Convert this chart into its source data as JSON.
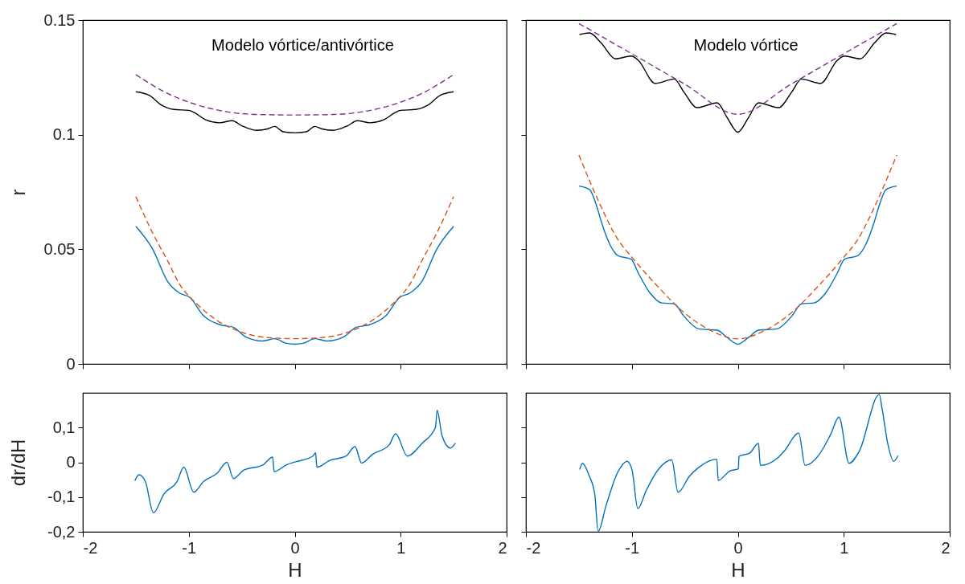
{
  "chart_data": [
    {
      "type": "line",
      "title": "Modelo vórtice/antivórtice",
      "ylabel": "r",
      "xlim": [
        -2,
        2
      ],
      "xticks": [
        -2,
        -1,
        0,
        1,
        2
      ],
      "ylim": [
        0,
        0.15
      ],
      "yticks": [
        0,
        0.05,
        0.1,
        0.15
      ],
      "tick_labels": "y",
      "series": [
        {
          "color": "#000000",
          "line_style": "solid",
          "x": [
            -1.5,
            -1.37,
            -1.26,
            -1.14,
            -1.0,
            -0.95,
            -0.84,
            -0.71,
            -0.59,
            -0.5,
            -0.36,
            -0.25,
            -0.19,
            -0.11,
            0,
            0.11,
            0.19,
            0.25,
            0.36,
            0.5,
            0.59,
            0.71,
            0.84,
            0.95,
            1.0,
            1.14,
            1.26,
            1.37,
            1.5
          ],
          "values": [
            0.1187,
            0.1171,
            0.113,
            0.111,
            0.1106,
            0.1097,
            0.1065,
            0.1052,
            0.1061,
            0.1039,
            0.1019,
            0.1026,
            0.1036,
            0.1013,
            0.1008,
            0.1013,
            0.1036,
            0.1026,
            0.1019,
            0.1039,
            0.1061,
            0.1052,
            0.1065,
            0.1097,
            0.1106,
            0.111,
            0.113,
            0.1171,
            0.1187
          ]
        },
        {
          "color": "#7e2f8e",
          "line_style": "dashed",
          "x": [
            -1.5,
            -1.2,
            -0.92,
            -0.64,
            -0.36,
            0,
            0.36,
            0.64,
            0.92,
            1.2,
            1.5
          ],
          "values": [
            0.1262,
            0.118,
            0.113,
            0.11,
            0.1088,
            0.1086,
            0.1088,
            0.11,
            0.113,
            0.118,
            0.1262
          ]
        },
        {
          "color": "#0072bd",
          "line_style": "solid",
          "x": [
            -1.5,
            -1.34,
            -1.2,
            -1.09,
            -0.99,
            -0.86,
            -0.7,
            -0.58,
            -0.47,
            -0.3,
            -0.19,
            -0.08,
            0,
            0.08,
            0.19,
            0.3,
            0.47,
            0.58,
            0.7,
            0.86,
            0.99,
            1.09,
            1.2,
            1.34,
            1.5
          ],
          "values": [
            0.06,
            0.05,
            0.036,
            0.031,
            0.029,
            0.021,
            0.017,
            0.016,
            0.012,
            0.01,
            0.011,
            0.009,
            0.0086,
            0.009,
            0.011,
            0.01,
            0.012,
            0.016,
            0.017,
            0.021,
            0.029,
            0.031,
            0.036,
            0.05,
            0.06
          ]
        },
        {
          "color": "#d95319",
          "line_style": "dashed",
          "x": [
            -1.5,
            -1.34,
            -1.2,
            -1.09,
            -0.92,
            -0.75,
            -0.53,
            -0.3,
            0,
            0.3,
            0.53,
            0.75,
            0.92,
            1.09,
            1.2,
            1.34,
            1.5
          ],
          "values": [
            0.073,
            0.057,
            0.045,
            0.035,
            0.026,
            0.0195,
            0.0143,
            0.0117,
            0.011,
            0.0117,
            0.0143,
            0.0195,
            0.026,
            0.035,
            0.045,
            0.057,
            0.073
          ]
        }
      ]
    },
    {
      "type": "line",
      "title": "Modelo vórtice",
      "xlim": [
        -2,
        2
      ],
      "xticks": [
        -2,
        -1,
        0,
        1,
        2
      ],
      "ylim": [
        0,
        0.15
      ],
      "yticks": [
        0,
        0.05,
        0.1,
        0.15
      ],
      "tick_labels": false,
      "series": [
        {
          "color": "#000000",
          "line_style": "solid",
          "x": [
            -1.494,
            -1.4,
            -1.29,
            -1.155,
            -1.007,
            -0.94,
            -0.78,
            -0.6,
            -0.51,
            -0.384,
            -0.195,
            -0.1,
            0,
            0.1,
            0.195,
            0.384,
            0.51,
            0.6,
            0.78,
            0.94,
            1.007,
            1.155,
            1.29,
            1.4,
            1.494
          ],
          "values": [
            0.1437,
            0.1444,
            0.14,
            0.1331,
            0.1343,
            0.1325,
            0.1224,
            0.1243,
            0.1187,
            0.1118,
            0.1139,
            0.1074,
            0.1011,
            0.1074,
            0.1139,
            0.1118,
            0.1187,
            0.1243,
            0.1224,
            0.1325,
            0.1343,
            0.1331,
            0.14,
            0.1444,
            0.1437
          ]
        },
        {
          "color": "#7e2f8e",
          "line_style": "dashed",
          "x": [
            -1.5,
            -1,
            -0.5,
            0,
            0.5,
            1,
            1.5
          ],
          "values": [
            0.1485,
            0.1353,
            0.122,
            0.1089,
            0.122,
            0.1353,
            0.1485
          ]
        },
        {
          "color": "#0072bd",
          "line_style": "solid",
          "x": [
            -1.5,
            -1.4,
            -1.33,
            -1.29,
            -1.21,
            -1.13,
            -1.007,
            -0.94,
            -0.83,
            -0.72,
            -0.6,
            -0.51,
            -0.37,
            -0.195,
            -0.1,
            0,
            0.1,
            0.195,
            0.37,
            0.51,
            0.6,
            0.72,
            0.83,
            0.94,
            1.007,
            1.13,
            1.21,
            1.29,
            1.33,
            1.4,
            1.5
          ],
          "values": [
            0.0776,
            0.0761,
            0.0685,
            0.0623,
            0.0523,
            0.0472,
            0.0457,
            0.0397,
            0.031,
            0.0266,
            0.0262,
            0.0209,
            0.0153,
            0.0147,
            0.0115,
            0.0086,
            0.0115,
            0.0147,
            0.0153,
            0.0209,
            0.0262,
            0.0266,
            0.031,
            0.0397,
            0.0457,
            0.0472,
            0.0523,
            0.0623,
            0.0685,
            0.0761,
            0.0776
          ]
        },
        {
          "color": "#d95319",
          "line_style": "dashed",
          "x": [
            -1.5,
            -1.29,
            -1.155,
            -0.966,
            -0.75,
            -0.533,
            -0.26,
            0,
            0.26,
            0.533,
            0.75,
            0.966,
            1.155,
            1.29,
            1.5
          ],
          "values": [
            0.0911,
            0.0685,
            0.056,
            0.0447,
            0.0335,
            0.0234,
            0.0147,
            0.0109,
            0.0147,
            0.0234,
            0.0335,
            0.0447,
            0.056,
            0.0685,
            0.0911
          ]
        }
      ]
    },
    {
      "type": "line",
      "xlabel": "H",
      "ylabel": "dr/dH",
      "xlim": [
        -2,
        2
      ],
      "xticks": [
        -2,
        -1,
        0,
        1,
        2
      ],
      "ylim": [
        -0.2,
        0.2
      ],
      "yticks": [
        {
          "value": -0.2,
          "label": "-0,2"
        },
        {
          "value": -0.1,
          "label": "-0,1"
        },
        0,
        {
          "value": 0.1,
          "label": "0,1"
        }
      ],
      "series": [
        {
          "color": "#0072bd",
          "line_style": "solid",
          "x": [
            -1.509,
            -1.47,
            -1.41,
            -1.334,
            -1.234,
            -1.11,
            -1.047,
            -0.953,
            -0.86,
            -0.734,
            -0.64,
            -0.578,
            -0.484,
            -0.297,
            -0.209,
            -0.194,
            -0.078,
            0.016,
            0.172,
            0.197,
            0.209,
            0.328,
            0.484,
            0.569,
            0.631,
            0.734,
            0.891,
            0.953,
            1.063,
            1.203,
            1.328,
            1.344,
            1.39,
            1.47,
            1.516
          ],
          "values": [
            -0.053,
            -0.036,
            -0.055,
            -0.145,
            -0.091,
            -0.055,
            -0.014,
            -0.086,
            -0.055,
            -0.032,
            0.0,
            -0.047,
            -0.023,
            -0.007,
            0.015,
            -0.027,
            -0.007,
            0.002,
            0.018,
            0.027,
            -0.014,
            0.005,
            0.018,
            0.045,
            -0.002,
            0.023,
            0.05,
            0.082,
            0.018,
            0.055,
            0.1,
            0.15,
            0.077,
            0.041,
            0.055
          ]
        }
      ]
    },
    {
      "type": "line",
      "xlabel": "H",
      "xlim": [
        -2,
        2
      ],
      "xticks": [
        -2,
        -1,
        0,
        1,
        2
      ],
      "ylim": [
        -0.2,
        0.2
      ],
      "yticks": [
        {
          "value": -0.2,
          "label": null
        },
        {
          "value": -0.1,
          "label": null
        },
        {
          "value": 0,
          "label": null
        },
        {
          "value": 0.1,
          "label": null
        }
      ],
      "tick_labels": "x",
      "series": [
        {
          "color": "#0072bd",
          "line_style": "solid",
          "x": [
            -1.493,
            -1.465,
            -1.406,
            -1.35,
            -1.319,
            -1.243,
            -1.134,
            -1.045,
            -0.999,
            -0.944,
            -0.863,
            -0.754,
            -0.624,
            -0.564,
            -0.456,
            -0.374,
            -0.198,
            -0.185,
            -0.076,
            0.005,
            0.011,
            0.114,
            0.195,
            0.212,
            0.385,
            0.44,
            0.575,
            0.635,
            0.765,
            0.874,
            0.955,
            1.05,
            1.145,
            1.335,
            1.362,
            1.417,
            1.471,
            1.512
          ],
          "values": [
            -0.021,
            -0.003,
            -0.037,
            -0.092,
            -0.199,
            -0.124,
            -0.029,
            0.003,
            -0.021,
            -0.133,
            -0.08,
            -0.022,
            0.007,
            -0.086,
            -0.04,
            -0.016,
            0.009,
            -0.052,
            -0.025,
            -0.019,
            0.017,
            0.027,
            0.055,
            -0.009,
            0.015,
            0.033,
            0.084,
            -0.009,
            0.021,
            0.079,
            0.13,
            -0.003,
            0.031,
            0.195,
            0.154,
            0.051,
            0.003,
            0.019
          ]
        }
      ]
    }
  ]
}
